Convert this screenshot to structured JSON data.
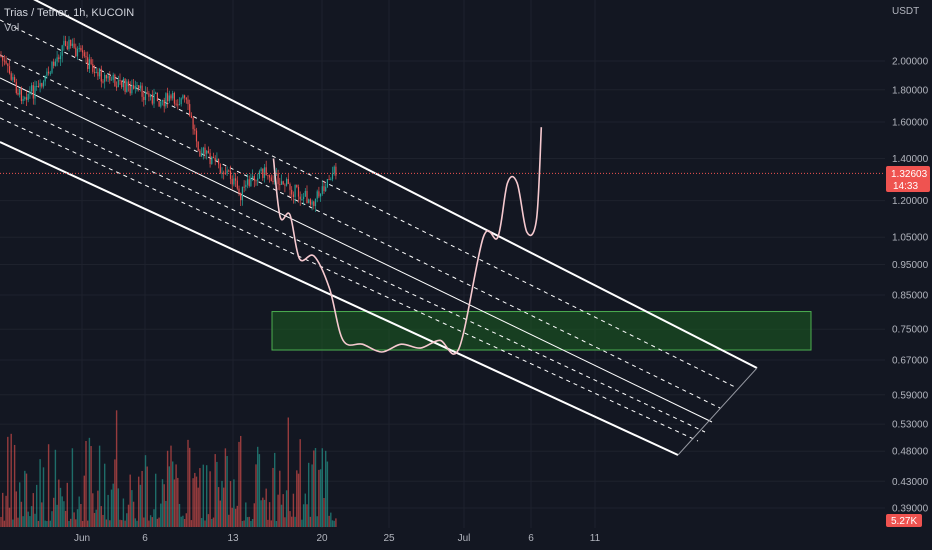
{
  "legend": {
    "symbol": "Trias / Tether, 1h, KUCOIN",
    "vol": "Vol"
  },
  "colors": {
    "background": "#131722",
    "up": "#26a69a",
    "down": "#ef5350",
    "channel": "#ffffff",
    "projection": "#f6c9cf",
    "zone_fill": "#1b5e20",
    "zone_stroke": "#4caf50",
    "price_line": "#ef5350"
  },
  "chart_data": {
    "type": "line",
    "currency_label": "USDT",
    "y_scale": "log",
    "y_ticks": [
      "2.00000",
      "1.80000",
      "1.60000",
      "1.40000",
      "1.20000",
      "1.05000",
      "0.95000",
      "0.85000",
      "0.75000",
      "0.67000",
      "0.59000",
      "0.53000",
      "0.48000",
      "0.43000",
      "0.39000"
    ],
    "x_ticks": [
      "Jun",
      "6",
      "13",
      "20",
      "25",
      "Jul",
      "6",
      "11"
    ],
    "last_price": {
      "value": "1.32603",
      "countdown": "14:33"
    },
    "volume_last": "5.27K",
    "support_zone": {
      "low": 0.695,
      "high": 0.8
    },
    "projection_path": [
      {
        "day": 20.8,
        "price": 1.4
      },
      {
        "day": 21.5,
        "price": 1.13
      },
      {
        "day": 22.5,
        "price": 1.14
      },
      {
        "day": 23.5,
        "price": 0.97
      },
      {
        "day": 25.0,
        "price": 0.98
      },
      {
        "day": 26.6,
        "price": 0.87
      },
      {
        "day": 28.0,
        "price": 0.72
      },
      {
        "day": 30.0,
        "price": 0.71
      },
      {
        "day": 32.0,
        "price": 0.69
      },
      {
        "day": 34.0,
        "price": 0.71
      },
      {
        "day": 36.0,
        "price": 0.7
      },
      {
        "day": 38.0,
        "price": 0.72
      },
      {
        "day": 40.0,
        "price": 0.7
      },
      {
        "day": 42.5,
        "price": 1.05
      },
      {
        "day": 44.0,
        "price": 1.05
      },
      {
        "day": 45.0,
        "price": 1.28
      },
      {
        "day": 46.0,
        "price": 1.28
      },
      {
        "day": 47.0,
        "price": 1.07
      },
      {
        "day": 48.0,
        "price": 1.12
      },
      {
        "day": 48.5,
        "price": 1.57
      }
    ]
  }
}
